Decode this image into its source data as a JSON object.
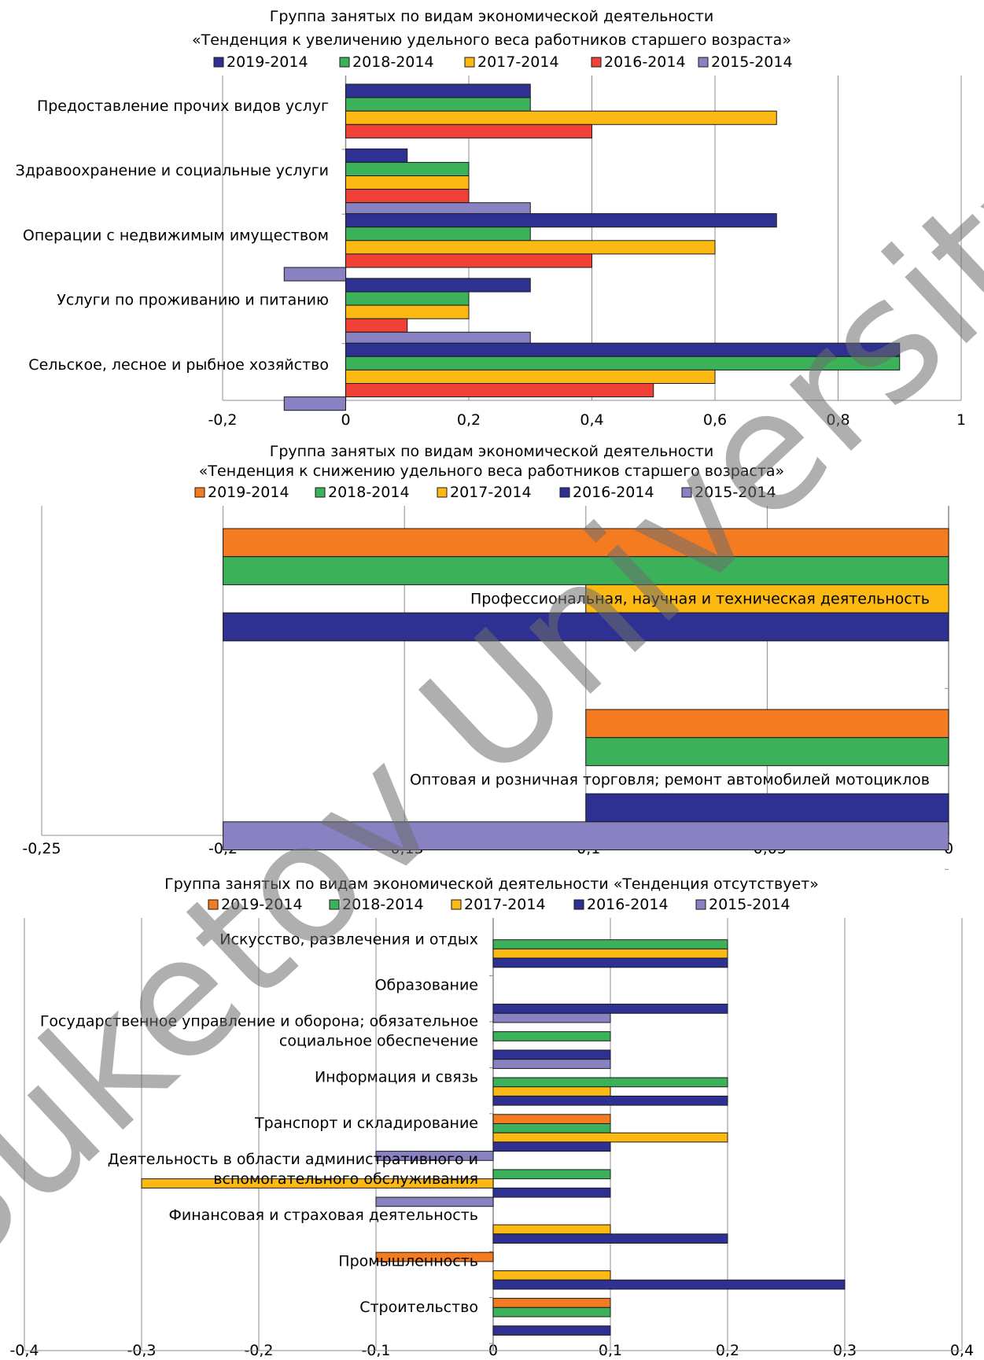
{
  "watermark": "Buketov University",
  "colors": {
    "c2019": "#2e3192",
    "c2018": "#3bb15a",
    "c2017": "#fdb913",
    "c2016": "#ef4136",
    "c2015": "#8882c2",
    "corange": "#f47b20",
    "grid": "#8c8c8c",
    "edge": "#1a1a1a"
  },
  "chart_data": [
    {
      "type": "bar",
      "orientation": "horizontal",
      "title_lines": [
        "Группа занятых по видам экономической деятельности",
        "«Тенденция к увеличению удельного веса работников старшего возраста»"
      ],
      "legend": [
        "2019-2014",
        "2018-2014",
        "2017-2014",
        "2016-2014",
        "2015-2014"
      ],
      "series_colors": [
        "c2019",
        "c2018",
        "c2017",
        "c2016",
        "c2015"
      ],
      "categories": [
        {
          "label_lines": [
            "Предоставление прочих видов услуг"
          ],
          "values": [
            0.3,
            0.3,
            0.7,
            0.4,
            null
          ]
        },
        {
          "label_lines": [
            "Здравоохранение и социальные услуги"
          ],
          "values": [
            0.1,
            0.2,
            0.2,
            0.2,
            0.3
          ]
        },
        {
          "label_lines": [
            "Операции с недвижимым имуществом"
          ],
          "values": [
            0.7,
            0.3,
            0.6,
            0.4,
            -0.1
          ]
        },
        {
          "label_lines": [
            "Услуги по проживанию и питанию"
          ],
          "values": [
            0.3,
            0.2,
            0.2,
            0.1,
            0.3
          ]
        },
        {
          "label_lines": [
            "Сельское, лесное и рыбное хозяйство"
          ],
          "values": [
            0.9,
            0.9,
            0.6,
            0.5,
            -0.1
          ]
        }
      ],
      "xlim": [
        -0.2,
        1
      ],
      "xticks": [
        "-0,2",
        "0",
        "0,2",
        "0,4",
        "0,6",
        "0,8",
        "1"
      ],
      "xtick_values": [
        -0.2,
        0,
        0.2,
        0.4,
        0.6,
        0.8,
        1
      ],
      "grid": true
    },
    {
      "type": "bar",
      "orientation": "horizontal",
      "title_lines": [
        "Группа занятых по видам экономической деятельности",
        "«Тенденция к снижению удельного веса работников старшего возраста»"
      ],
      "legend": [
        "2019-2014",
        "2018-2014",
        "2017-2014",
        "2016-2014",
        "2015-2014"
      ],
      "series_colors": [
        "corange",
        "c2018",
        "c2017",
        "c2019",
        "c2015"
      ],
      "categories": [
        {
          "label_lines": [
            "Профессиональная, научная и техническая деятельность"
          ],
          "values": [
            -0.2,
            -0.2,
            -0.1,
            -0.2,
            null
          ]
        },
        {
          "label_lines": [
            "Оптовая и розничная торговля; ремонт автомобилей мотоциклов"
          ],
          "values": [
            -0.1,
            -0.1,
            null,
            -0.1,
            -0.2
          ]
        }
      ],
      "xlim": [
        -0.25,
        0
      ],
      "xticks": [
        "-0,25",
        "-0,2",
        "-0,15",
        "-0,1",
        "-0,05",
        "0"
      ],
      "xtick_values": [
        -0.25,
        -0.2,
        -0.15,
        -0.1,
        -0.05,
        0
      ],
      "grid": true
    },
    {
      "type": "bar",
      "orientation": "horizontal",
      "title_lines": [
        "Группа занятых по видам экономической деятельности «Тенденция отсутствует»"
      ],
      "legend": [
        "2019-2014",
        "2018-2014",
        "2017-2014",
        "2016-2014",
        "2015-2014"
      ],
      "series_colors": [
        "corange",
        "c2018",
        "c2017",
        "c2019",
        "c2015"
      ],
      "categories": [
        {
          "label_lines": [
            "Искусство, развлечения и отдых"
          ],
          "values": [
            null,
            0.2,
            0.2,
            0.2,
            null
          ]
        },
        {
          "label_lines": [
            "Образование"
          ],
          "values": [
            null,
            null,
            null,
            0.2,
            0.1
          ]
        },
        {
          "label_lines": [
            "Государственное управление и оборона; обязательное",
            "социальное обеспечение"
          ],
          "values": [
            null,
            0.1,
            null,
            0.1,
            0.1
          ]
        },
        {
          "label_lines": [
            "Информация и связь"
          ],
          "values": [
            null,
            0.2,
            0.1,
            0.2,
            null
          ]
        },
        {
          "label_lines": [
            "Транспорт и складирование"
          ],
          "values": [
            0.1,
            0.1,
            0.2,
            0.1,
            -0.1
          ]
        },
        {
          "label_lines": [
            "Деятельность в области административного и",
            "вспомогательного обслуживания"
          ],
          "values": [
            null,
            0.1,
            -0.3,
            0.1,
            -0.1
          ]
        },
        {
          "label_lines": [
            "Финансовая и страховая деятельность"
          ],
          "values": [
            null,
            null,
            0.1,
            0.2,
            null
          ]
        },
        {
          "label_lines": [
            "Промышленность"
          ],
          "values": [
            -0.1,
            null,
            0.1,
            0.3,
            null
          ]
        },
        {
          "label_lines": [
            "Строительство"
          ],
          "values": [
            0.1,
            0.1,
            null,
            0.1,
            null
          ]
        }
      ],
      "xlim": [
        -0.4,
        0.4
      ],
      "xticks": [
        "-0,4",
        "-0,3",
        "-0,2",
        "-0,1",
        "0",
        "0,1",
        "0,2",
        "0,3",
        "0,4"
      ],
      "xtick_values": [
        -0.4,
        -0.3,
        -0.2,
        -0.1,
        0,
        0.1,
        0.2,
        0.3,
        0.4
      ],
      "grid": true
    }
  ]
}
